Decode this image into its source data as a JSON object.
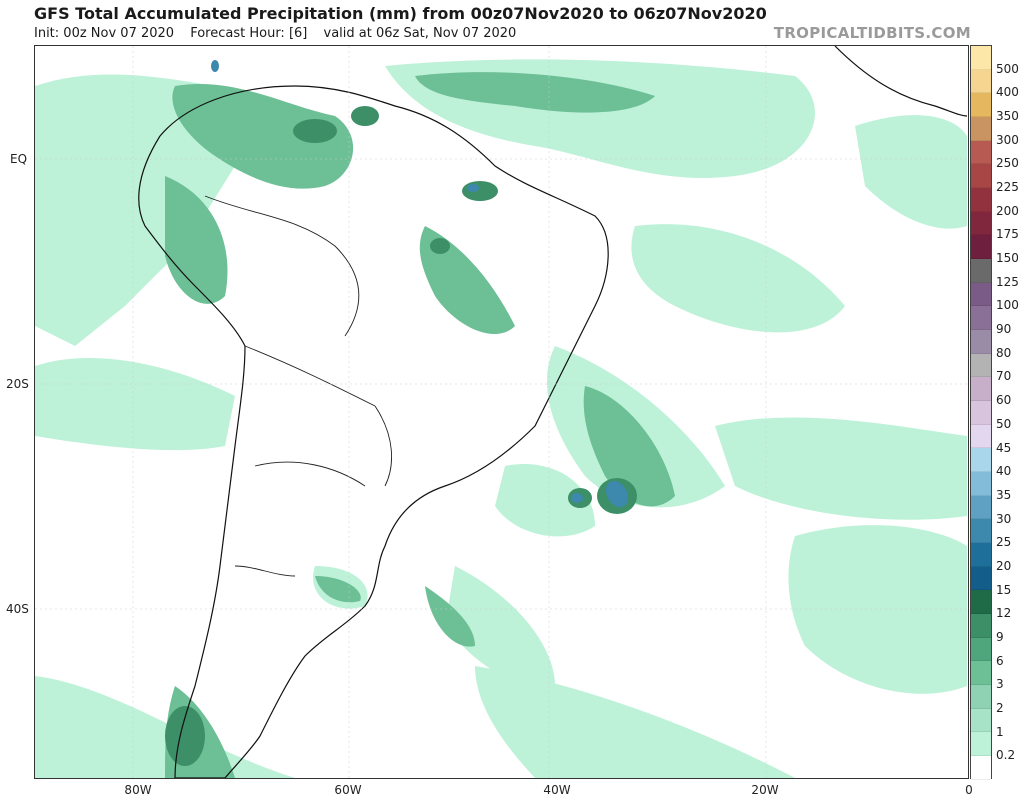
{
  "header": {
    "title": "GFS Total Accumulated Precipitation (mm) from 00z07Nov2020 to 06z07Nov2020",
    "init": "Init: 00z Nov 07 2020",
    "forecast_hour": "Forecast Hour: [6]",
    "valid": "valid at 06z Sat, Nov 07 2020",
    "brand": "TROPICALTIDBITS.COM"
  },
  "map": {
    "region": "South America and South Atlantic",
    "lat_labels": [
      "EQ",
      "20S",
      "40S"
    ],
    "lon_labels": [
      "80W",
      "60W",
      "40W",
      "20W",
      "0"
    ]
  },
  "legend": {
    "units": "mm",
    "levels": [
      "0.2",
      "1",
      "2",
      "3",
      "6",
      "9",
      "12",
      "15",
      "20",
      "25",
      "30",
      "35",
      "40",
      "45",
      "50",
      "60",
      "70",
      "80",
      "90",
      "100",
      "125",
      "150",
      "175",
      "200",
      "225",
      "250",
      "300",
      "350",
      "400",
      "500"
    ],
    "colors": [
      "#ffffff",
      "#bdf2d9",
      "#a6e3c7",
      "#8fd1b3",
      "#6dbf96",
      "#4fa67d",
      "#3c8f67",
      "#1f6b48",
      "#135d8a",
      "#1e6f99",
      "#3d88ad",
      "#5fa1c2",
      "#82bcd8",
      "#a9d6ea",
      "#e2d7ee",
      "#d9c4de",
      "#c7aec9",
      "#b3b3b3",
      "#9a8ba6",
      "#8a7096",
      "#7a5a86",
      "#6a6a6a",
      "#6e1f3d",
      "#80273e",
      "#93323f",
      "#a84646",
      "#b65a52",
      "#c99461",
      "#e5b860",
      "#f6d590",
      "#fde7a8"
    ]
  }
}
